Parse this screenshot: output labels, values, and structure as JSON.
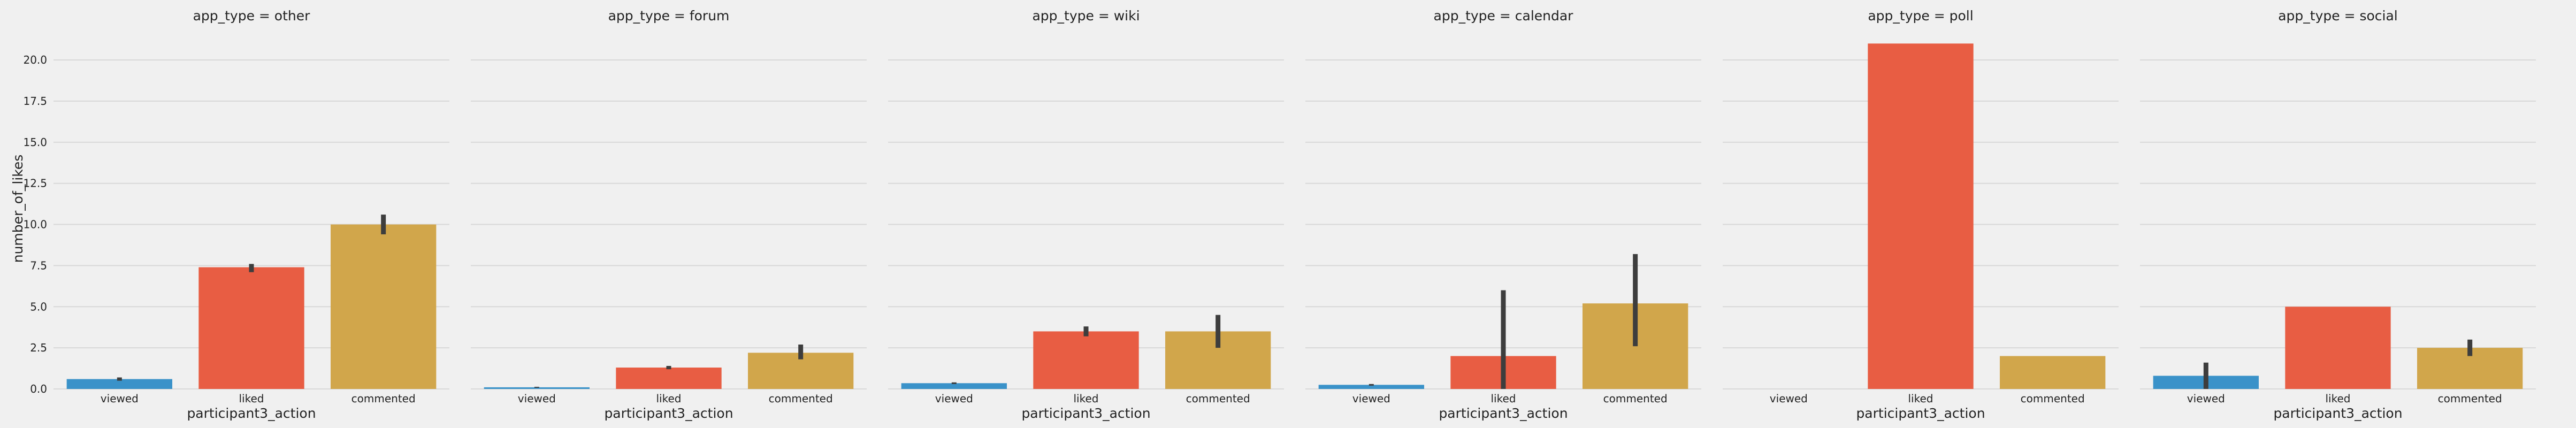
{
  "chart_data": {
    "type": "bar",
    "facet_variable": "app_type",
    "xlabel": "participant3_action",
    "ylabel": "number_of_likes",
    "categories": [
      "viewed",
      "liked",
      "commented"
    ],
    "ylim": [
      0,
      21.5
    ],
    "yticks": [
      0.0,
      2.5,
      5.0,
      7.5,
      10.0,
      12.5,
      15.0,
      17.5,
      20.0
    ],
    "ytick_labels": [
      "0.0",
      "2.5",
      "5.0",
      "7.5",
      "10.0",
      "12.5",
      "15.0",
      "17.5",
      "20.0"
    ],
    "grid": true,
    "colors": {
      "viewed": "#3a92c9",
      "liked": "#e85d43",
      "commented": "#d1a64b",
      "errorbar": "#3d3d3d",
      "grid": "#d8d8d8",
      "background": "#f0f0f0"
    },
    "facets": [
      {
        "title": "app_type = other",
        "values": [
          0.6,
          7.4,
          10.0
        ],
        "error": [
          [
            0.5,
            0.7
          ],
          [
            7.1,
            7.6
          ],
          [
            9.4,
            10.6
          ]
        ]
      },
      {
        "title": "app_type = forum",
        "values": [
          0.1,
          1.3,
          2.2
        ],
        "error": [
          [
            0.07,
            0.13
          ],
          [
            1.2,
            1.4
          ],
          [
            1.8,
            2.7
          ]
        ]
      },
      {
        "title": "app_type = wiki",
        "values": [
          0.35,
          3.5,
          3.5
        ],
        "error": [
          [
            0.3,
            0.4
          ],
          [
            3.2,
            3.8
          ],
          [
            2.5,
            4.5
          ]
        ]
      },
      {
        "title": "app_type = calendar",
        "values": [
          0.25,
          2.0,
          5.2
        ],
        "error": [
          [
            0.2,
            0.3
          ],
          [
            0.0,
            6.0
          ],
          [
            2.6,
            8.2
          ]
        ]
      },
      {
        "title": "app_type = poll",
        "values": [
          null,
          21.0,
          2.0
        ],
        "error": [
          null,
          null,
          null
        ]
      },
      {
        "title": "app_type = social",
        "values": [
          0.8,
          5.0,
          2.5
        ],
        "error": [
          [
            0.0,
            1.6
          ],
          null,
          [
            2.0,
            3.0
          ]
        ]
      }
    ]
  }
}
